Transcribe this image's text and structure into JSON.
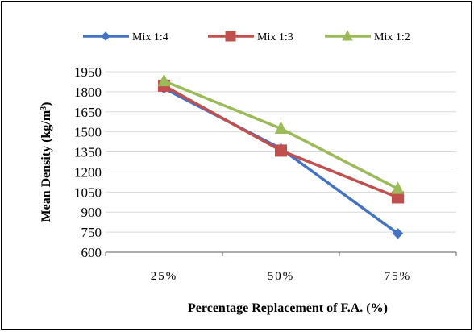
{
  "chart_data": {
    "type": "line",
    "categories": [
      "25%",
      "50%",
      "75%"
    ],
    "series": [
      {
        "name": "Mix 1:4",
        "values": [
          1825,
          1375,
          740
        ],
        "color": "#4472C4",
        "marker": "diamond"
      },
      {
        "name": "Mix 1:3",
        "values": [
          1845,
          1360,
          1010
        ],
        "color": "#C0504D",
        "marker": "square"
      },
      {
        "name": "Mix 1:2",
        "values": [
          1880,
          1525,
          1075
        ],
        "color": "#9BBB59",
        "marker": "triangle"
      }
    ],
    "xlabel": "Percentage Replacement of F.A.  (%)",
    "ylabel_main": "Mean Density  (kg/m",
    "ylabel_sup": "3",
    "ylabel_close": ")",
    "ylim": [
      600,
      1950
    ],
    "yticks": [
      600,
      750,
      900,
      1050,
      1200,
      1350,
      1500,
      1650,
      1800,
      1950
    ],
    "grid": true,
    "legend_position": "top"
  }
}
